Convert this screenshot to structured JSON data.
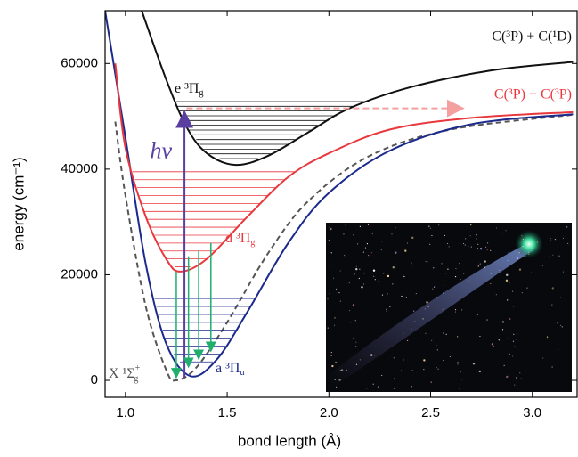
{
  "chart_data": {
    "type": "line",
    "x_label": "bond length (Å)",
    "y_label": "energy (cm⁻¹)",
    "xlim": [
      0.9,
      3.22
    ],
    "ylim": [
      -3200,
      70000
    ],
    "xticks": [
      {
        "value": 1,
        "label": "1.0"
      },
      1.5,
      {
        "value": 2,
        "label": "2.0"
      },
      2.5,
      {
        "value": 3,
        "label": "3.0"
      }
    ],
    "yticks": [
      0,
      20000,
      40000,
      60000
    ],
    "series": [
      {
        "name": "X ¹Σ",
        "sub": "g",
        "sup": "+",
        "color": "#555555",
        "dashed": true,
        "x": [
          0.95,
          1.0,
          1.1,
          1.2,
          1.25,
          1.35,
          1.5,
          1.7,
          1.9,
          2.2,
          2.6,
          3.2
        ],
        "values": [
          49000,
          35000,
          14000,
          2000,
          0,
          2500,
          11000,
          24000,
          34000,
          42500,
          47500,
          50300
        ],
        "levels": []
      },
      {
        "name": "a ³Π",
        "sub": "u",
        "color": "#1c2a8c",
        "dashed": false,
        "x": [
          0.9,
          1.0,
          1.1,
          1.2,
          1.32,
          1.45,
          1.6,
          1.8,
          2.0,
          2.3,
          2.7,
          3.2
        ],
        "values": [
          70000,
          46000,
          22000,
          7000,
          800,
          4000,
          13000,
          26000,
          35500,
          43500,
          48500,
          50400
        ],
        "levels": [
          3500,
          5000,
          6500,
          8000,
          9500,
          11000,
          12500,
          14000,
          15500
        ]
      },
      {
        "name": "d ³Π",
        "sub": "g",
        "color": "#e8383d",
        "dashed": false,
        "x": [
          0.95,
          1.0,
          1.1,
          1.2,
          1.27,
          1.4,
          1.6,
          1.8,
          2.0,
          2.3,
          2.7,
          3.2
        ],
        "values": [
          60000,
          44000,
          31000,
          23000,
          20600,
          23000,
          31000,
          38500,
          43000,
          47500,
          49700,
          50800
        ],
        "levels": [
          21500,
          23000,
          24500,
          26000,
          27500,
          29000,
          30500,
          32000,
          33500,
          35000,
          36500,
          38000,
          39500
        ]
      },
      {
        "name": "e ³Π",
        "sub": "g",
        "color": "#111111",
        "dashed": false,
        "x": [
          1.08,
          1.2,
          1.3,
          1.4,
          1.54,
          1.7,
          1.9,
          2.1,
          2.4,
          2.8,
          3.2
        ],
        "values": [
          70000,
          57000,
          48000,
          43000,
          40800,
          42500,
          47000,
          51500,
          55500,
          58700,
          60300
        ],
        "levels": [
          42000,
          42900,
          43800,
          44700,
          45600,
          46500,
          47400,
          48300,
          49200,
          50100,
          51000,
          51900,
          52800
        ]
      }
    ],
    "limits": [
      {
        "text": "C(³P) + C(¹D)",
        "color": "#111111"
      },
      {
        "text": "C(³P) + C(³P)",
        "color": "#e8383d"
      }
    ],
    "dissociation_arrow": {
      "x": [
        1.3,
        2.65
      ],
      "value": 51500,
      "color": "#f4a0a0"
    },
    "excitation": {
      "label": "hν",
      "x": 1.29,
      "from": 500,
      "to": 51500,
      "color": "#5a3fa0"
    },
    "emissions": {
      "color": "#1fae6b",
      "x": [
        1.25,
        1.31,
        1.36,
        1.42
      ],
      "from": [
        20600,
        23500,
        24500,
        26000
      ],
      "to": [
        1500,
        3500,
        5000,
        6500
      ]
    }
  }
}
